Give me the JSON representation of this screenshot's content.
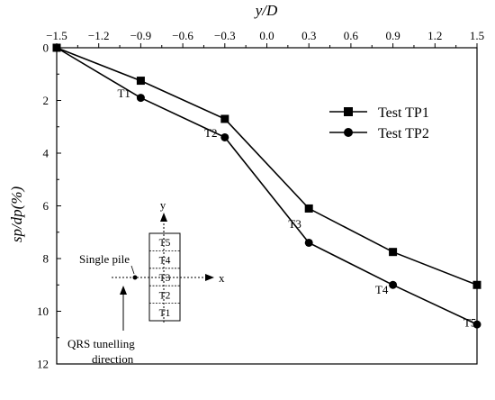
{
  "chart_data": {
    "type": "line",
    "title": "",
    "xlabel": "y/D",
    "ylabel": "sp/dp(%)",
    "x_axis_position": "top",
    "y_axis_inverted": true,
    "xlim": [
      -1.5,
      1.5
    ],
    "ylim": [
      0,
      12
    ],
    "x_ticks": [
      -1.5,
      -1.2,
      -0.9,
      -0.6,
      -0.3,
      0.0,
      0.3,
      0.6,
      0.9,
      1.2,
      1.5
    ],
    "x_tick_labels": [
      "−1.5",
      "−1.2",
      "−0.9",
      "−0.6",
      "−0.3",
      "0.0",
      "0.3",
      "0.6",
      "0.9",
      "1.2",
      "1.5"
    ],
    "y_ticks": [
      0,
      2,
      4,
      6,
      8,
      10,
      12
    ],
    "y_tick_labels": [
      "0",
      "2",
      "4",
      "6",
      "8",
      "10",
      "12"
    ],
    "grid": false,
    "legend_position": "top-right",
    "series": [
      {
        "name": "Test TP1",
        "marker": "square",
        "x": [
          -1.5,
          -0.9,
          -0.3,
          0.3,
          0.9,
          1.5
        ],
        "y": [
          0,
          1.25,
          2.7,
          6.1,
          7.75,
          9.0
        ]
      },
      {
        "name": "Test TP2",
        "marker": "circle",
        "x": [
          -1.5,
          -0.9,
          -0.3,
          0.3,
          0.9,
          1.5
        ],
        "y": [
          0,
          1.9,
          3.4,
          7.4,
          9.0,
          10.5
        ]
      }
    ],
    "annotations": [
      {
        "text": "T1",
        "x": -1.02,
        "y": 1.75
      },
      {
        "text": "T2",
        "x": -0.4,
        "y": 3.25
      },
      {
        "text": "T3",
        "x": 0.2,
        "y": 6.7
      },
      {
        "text": "T4",
        "x": 0.82,
        "y": 9.2
      },
      {
        "text": "T5",
        "x": 1.45,
        "y": 10.45
      }
    ],
    "inset": {
      "axis_x_label": "x",
      "axis_y_label": "y",
      "cells": [
        "T5",
        "T4",
        "T3",
        "T2",
        "T1"
      ],
      "pile_label": "Single pile",
      "direction_label_line1": "QRS tunelling",
      "direction_label_line2": "direction"
    }
  }
}
